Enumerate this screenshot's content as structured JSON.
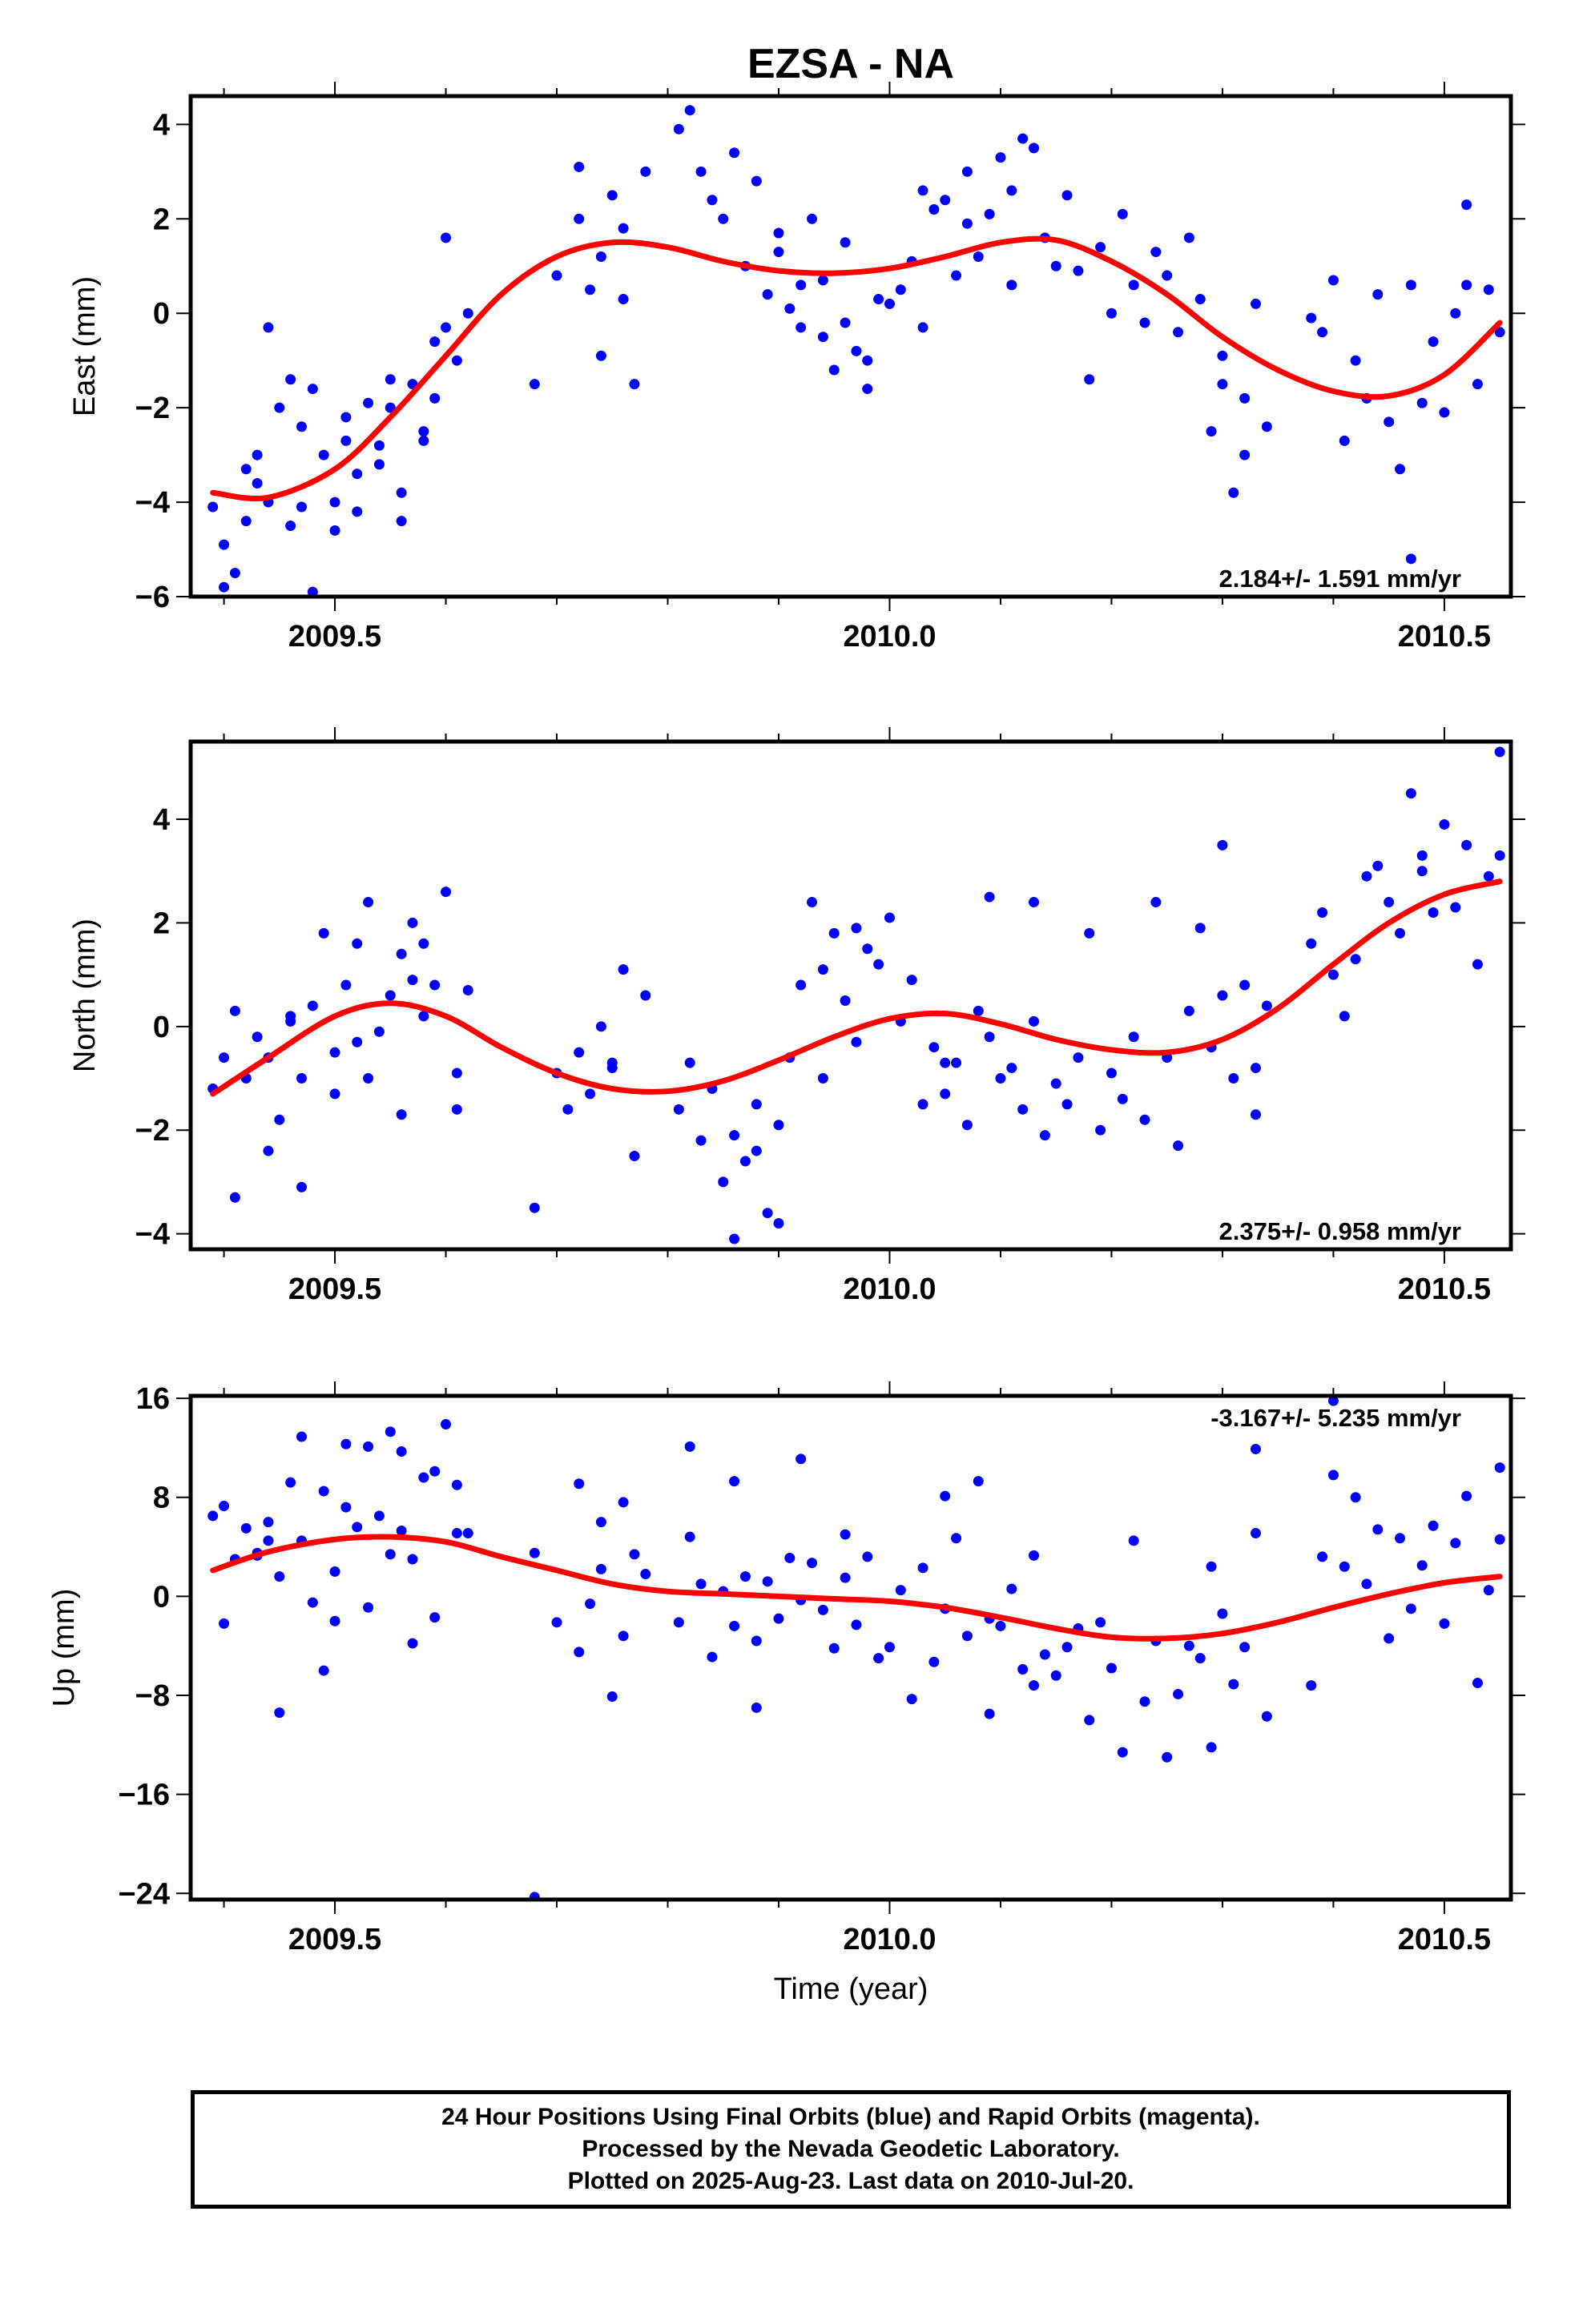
{
  "title": "EZSA - NA",
  "footer": {
    "line1": "24 Hour Positions Using Final Orbits (blue) and Rapid Orbits (magenta).",
    "line2": "Processed by the Nevada Geodetic Laboratory.",
    "line3": "Plotted on 2025-Aug-23. Last data on 2010-Jul-20."
  },
  "colors": {
    "points": "#0000ff",
    "fit": "#ff0000",
    "axes": "#000000"
  },
  "chart_data": [
    {
      "type": "scatter",
      "ylabel": "East (mm)",
      "ylim": [
        -6,
        4.6
      ],
      "xlim": [
        2009.37,
        2010.56
      ],
      "xticks": [
        2009.5,
        2010.0,
        2010.5
      ],
      "xtick_labels": [
        "2009.5",
        "2010.0",
        "2010.5"
      ],
      "yticks": [
        -6,
        -4,
        -2,
        0,
        2,
        4
      ],
      "ytick_labels": [
        "−6",
        "−4",
        "−2",
        "0",
        "2",
        "4"
      ],
      "annotation": "2.184+/- 1.591 mm/yr",
      "annotation_position": "bottom-right",
      "fit": {
        "x": [
          2009.39,
          2009.44,
          2009.5,
          2009.55,
          2009.6,
          2009.65,
          2009.7,
          2009.75,
          2009.8,
          2009.85,
          2009.9,
          2009.95,
          2010.0,
          2010.05,
          2010.1,
          2010.15,
          2010.2,
          2010.25,
          2010.3,
          2010.35,
          2010.4,
          2010.45,
          2010.5,
          2010.55
        ],
        "y": [
          -3.8,
          -3.9,
          -3.3,
          -2.2,
          -0.9,
          0.4,
          1.2,
          1.5,
          1.4,
          1.1,
          0.9,
          0.85,
          0.95,
          1.2,
          1.5,
          1.55,
          1.1,
          0.4,
          -0.5,
          -1.2,
          -1.65,
          -1.75,
          -1.3,
          -0.2
        ]
      },
      "points": {
        "x": [
          2009.39,
          2009.4,
          2009.41,
          2009.42,
          2009.43,
          2009.44,
          2009.45,
          2009.46,
          2009.47,
          2009.48,
          2009.49,
          2009.5,
          2009.51,
          2009.52,
          2009.53,
          2009.54,
          2009.55,
          2009.56,
          2009.57,
          2009.58,
          2009.59,
          2009.6,
          2009.61,
          2009.62,
          2009.4,
          2009.42,
          2009.44,
          2009.46,
          2009.48,
          2009.5,
          2009.52,
          2009.54,
          2009.56,
          2009.58,
          2009.6,
          2009.43,
          2009.47,
          2009.51,
          2009.55,
          2009.59,
          2009.68,
          2009.7,
          2009.72,
          2009.73,
          2009.74,
          2009.75,
          2009.76,
          2009.77,
          2009.78,
          2009.72,
          2009.74,
          2009.76,
          2009.81,
          2009.82,
          2009.83,
          2009.84,
          2009.85,
          2009.86,
          2009.87,
          2009.88,
          2009.89,
          2009.9,
          2009.91,
          2009.92,
          2009.93,
          2009.94,
          2009.95,
          2009.96,
          2009.97,
          2009.98,
          2009.99,
          2009.9,
          2009.92,
          2009.94,
          2009.96,
          2009.98,
          2010.0,
          2010.01,
          2010.02,
          2010.03,
          2010.04,
          2010.05,
          2010.06,
          2010.07,
          2010.08,
          2010.09,
          2010.1,
          2010.11,
          2010.12,
          2010.13,
          2010.14,
          2010.15,
          2010.03,
          2010.07,
          2010.11,
          2010.16,
          2010.17,
          2010.18,
          2010.19,
          2010.2,
          2010.21,
          2010.22,
          2010.23,
          2010.24,
          2010.25,
          2010.26,
          2010.27,
          2010.28,
          2010.29,
          2010.3,
          2010.31,
          2010.32,
          2010.33,
          2010.34,
          2010.3,
          2010.32,
          2010.38,
          2010.39,
          2010.4,
          2010.41,
          2010.42,
          2010.43,
          2010.44,
          2010.45,
          2010.46,
          2010.47,
          2010.48,
          2010.49,
          2010.5,
          2010.51,
          2010.52,
          2010.53,
          2010.54,
          2010.55,
          2010.47,
          2010.52
        ],
        "y": [
          -4.1,
          -4.9,
          -5.5,
          -3.3,
          -3.6,
          -4.0,
          -2.0,
          -4.5,
          -2.4,
          -1.6,
          -3.0,
          -4.6,
          -2.7,
          -3.4,
          -1.9,
          -3.2,
          -2.0,
          -3.8,
          -1.5,
          -2.5,
          -1.8,
          -0.3,
          -1.0,
          0.0,
          -5.8,
          -4.4,
          -0.3,
          -1.4,
          -5.9,
          -4.0,
          -4.2,
          -2.8,
          -4.4,
          -2.7,
          1.6,
          -3.0,
          -4.1,
          -2.2,
          -1.4,
          -0.6,
          -1.5,
          0.8,
          2.0,
          0.5,
          1.2,
          2.5,
          0.3,
          -1.5,
          3.0,
          3.1,
          -0.9,
          1.8,
          3.9,
          4.3,
          3.0,
          2.4,
          2.0,
          3.4,
          1.0,
          2.8,
          0.4,
          1.7,
          0.1,
          0.6,
          2.0,
          -0.5,
          -1.2,
          1.5,
          -0.8,
          -1.0,
          0.3,
          1.3,
          -0.3,
          0.7,
          -0.2,
          -1.6,
          0.2,
          0.5,
          1.1,
          -0.3,
          2.2,
          2.4,
          0.8,
          3.0,
          1.2,
          2.1,
          3.3,
          2.6,
          3.7,
          3.5,
          1.6,
          1.0,
          2.6,
          1.9,
          0.6,
          2.5,
          0.9,
          -1.4,
          1.4,
          0.0,
          2.1,
          0.6,
          -0.2,
          1.3,
          0.8,
          -0.4,
          1.6,
          0.3,
          -2.5,
          -0.9,
          -3.8,
          -1.8,
          0.2,
          -2.4,
          -1.5,
          -3.0,
          -0.1,
          -0.4,
          0.7,
          -2.7,
          -1.0,
          -1.8,
          0.4,
          -2.3,
          -3.3,
          0.6,
          -1.9,
          -0.6,
          -2.1,
          0.0,
          0.6,
          -1.5,
          0.5,
          -0.4,
          -5.2,
          2.3
        ]
      }
    },
    {
      "type": "scatter",
      "ylabel": "North (mm)",
      "ylim": [
        -4.3,
        5.5
      ],
      "xlim": [
        2009.37,
        2010.56
      ],
      "xticks": [
        2009.5,
        2010.0,
        2010.5
      ],
      "xtick_labels": [
        "2009.5",
        "2010.0",
        "2010.5"
      ],
      "yticks": [
        -4,
        -2,
        0,
        2,
        4
      ],
      "ytick_labels": [
        "−4",
        "−2",
        "0",
        "2",
        "4"
      ],
      "annotation": "2.375+/- 0.958 mm/yr",
      "annotation_position": "bottom-right",
      "fit": {
        "x": [
          2009.39,
          2009.44,
          2009.5,
          2009.55,
          2009.6,
          2009.65,
          2009.7,
          2009.75,
          2009.8,
          2009.85,
          2009.9,
          2009.95,
          2010.0,
          2010.05,
          2010.1,
          2010.15,
          2010.2,
          2010.25,
          2010.3,
          2010.35,
          2010.4,
          2010.45,
          2010.5,
          2010.55
        ],
        "y": [
          -1.3,
          -0.6,
          0.2,
          0.45,
          0.2,
          -0.4,
          -0.9,
          -1.2,
          -1.25,
          -1.05,
          -0.65,
          -0.2,
          0.15,
          0.25,
          0.05,
          -0.25,
          -0.45,
          -0.5,
          -0.25,
          0.35,
          1.2,
          2.0,
          2.55,
          2.8
        ]
      },
      "points": {
        "x": [
          2009.39,
          2009.4,
          2009.41,
          2009.42,
          2009.43,
          2009.44,
          2009.45,
          2009.46,
          2009.47,
          2009.48,
          2009.49,
          2009.5,
          2009.51,
          2009.52,
          2009.53,
          2009.54,
          2009.55,
          2009.56,
          2009.57,
          2009.58,
          2009.59,
          2009.6,
          2009.61,
          2009.62,
          2009.41,
          2009.44,
          2009.47,
          2009.5,
          2009.53,
          2009.56,
          2009.58,
          2009.61,
          2009.46,
          2009.52,
          2009.57,
          2009.68,
          2009.7,
          2009.72,
          2009.73,
          2009.74,
          2009.75,
          2009.76,
          2009.77,
          2009.78,
          2009.71,
          2009.75,
          2009.81,
          2009.82,
          2009.83,
          2009.84,
          2009.85,
          2009.86,
          2009.87,
          2009.88,
          2009.89,
          2009.9,
          2009.91,
          2009.92,
          2009.93,
          2009.94,
          2009.95,
          2009.96,
          2009.97,
          2009.98,
          2009.99,
          2009.86,
          2009.88,
          2009.9,
          2009.94,
          2009.97,
          2010.0,
          2010.01,
          2010.02,
          2010.03,
          2010.04,
          2010.05,
          2010.06,
          2010.07,
          2010.08,
          2010.09,
          2010.1,
          2010.11,
          2010.12,
          2010.13,
          2010.14,
          2010.15,
          2010.05,
          2010.09,
          2010.13,
          2010.16,
          2010.17,
          2010.18,
          2010.19,
          2010.2,
          2010.21,
          2010.22,
          2010.23,
          2010.24,
          2010.25,
          2010.26,
          2010.27,
          2010.28,
          2010.29,
          2010.3,
          2010.31,
          2010.32,
          2010.33,
          2010.34,
          2010.3,
          2010.33,
          2010.38,
          2010.39,
          2010.4,
          2010.41,
          2010.42,
          2010.43,
          2010.44,
          2010.45,
          2010.46,
          2010.47,
          2010.48,
          2010.49,
          2010.5,
          2010.51,
          2010.52,
          2010.53,
          2010.54,
          2010.55,
          2010.48,
          2010.55
        ],
        "y": [
          -1.2,
          -0.6,
          0.3,
          -1.0,
          -0.2,
          -0.6,
          -1.8,
          0.1,
          -1.0,
          0.4,
          1.8,
          -0.5,
          0.8,
          1.6,
          2.4,
          -0.1,
          0.6,
          -1.7,
          2.0,
          0.2,
          0.8,
          2.6,
          -0.9,
          0.7,
          -3.3,
          -2.4,
          -3.1,
          -1.3,
          -1.0,
          1.4,
          1.6,
          -1.6,
          0.2,
          -0.3,
          0.9,
          -3.5,
          -0.9,
          -0.5,
          -1.3,
          0.0,
          -0.7,
          1.1,
          -2.5,
          0.6,
          -1.6,
          -0.8,
          -1.6,
          -0.7,
          -2.2,
          -1.2,
          -3.0,
          -2.1,
          -2.6,
          -1.5,
          -3.6,
          -1.9,
          -0.6,
          0.8,
          2.4,
          1.1,
          1.8,
          0.5,
          -0.3,
          1.5,
          1.2,
          -4.1,
          -2.4,
          -3.8,
          -1.0,
          1.9,
          2.1,
          0.1,
          0.9,
          -1.5,
          -0.4,
          -1.3,
          -0.7,
          -1.9,
          0.3,
          -0.2,
          -1.0,
          -0.8,
          -1.6,
          0.1,
          -2.1,
          -1.1,
          -0.7,
          2.5,
          2.4,
          -1.5,
          -0.6,
          1.8,
          -2.0,
          -0.9,
          -1.4,
          -0.2,
          -1.8,
          2.4,
          -0.6,
          -2.3,
          0.3,
          1.9,
          -0.4,
          0.6,
          -1.0,
          0.8,
          -1.7,
          0.4,
          3.5,
          -0.8,
          1.6,
          2.2,
          1.0,
          0.2,
          1.3,
          2.9,
          3.1,
          2.4,
          1.8,
          4.5,
          3.0,
          2.2,
          3.9,
          2.3,
          3.5,
          1.2,
          2.9,
          3.3,
          3.3,
          5.3
        ]
      }
    },
    {
      "type": "scatter",
      "ylabel": "Up (mm)",
      "xlabel": "Time (year)",
      "ylim": [
        -24.5,
        16.2
      ],
      "xlim": [
        2009.37,
        2010.56
      ],
      "xticks": [
        2009.5,
        2010.0,
        2010.5
      ],
      "xtick_labels": [
        "2009.5",
        "2010.0",
        "2010.5"
      ],
      "yticks": [
        -24,
        -16,
        -8,
        0,
        8,
        16
      ],
      "ytick_labels": [
        "−24",
        "−16",
        "−8",
        "0",
        "8",
        "16"
      ],
      "annotation": "-3.167+/- 5.235 mm/yr",
      "annotation_position": "top-right",
      "fit": {
        "x": [
          2009.39,
          2009.44,
          2009.5,
          2009.55,
          2009.6,
          2009.65,
          2009.7,
          2009.75,
          2009.8,
          2009.85,
          2009.9,
          2009.95,
          2010.0,
          2010.05,
          2010.1,
          2010.15,
          2010.2,
          2010.25,
          2010.3,
          2010.35,
          2010.4,
          2010.45,
          2010.5,
          2010.55
        ],
        "y": [
          2.1,
          3.6,
          4.6,
          4.8,
          4.4,
          3.2,
          2.1,
          1.0,
          0.4,
          0.2,
          0.0,
          -0.2,
          -0.4,
          -0.9,
          -1.7,
          -2.6,
          -3.3,
          -3.4,
          -3.0,
          -2.1,
          -0.9,
          0.2,
          1.1,
          1.6
        ]
      },
      "points": {
        "x": [
          2009.39,
          2009.4,
          2009.41,
          2009.42,
          2009.43,
          2009.44,
          2009.45,
          2009.46,
          2009.47,
          2009.48,
          2009.49,
          2009.5,
          2009.51,
          2009.52,
          2009.53,
          2009.54,
          2009.55,
          2009.56,
          2009.57,
          2009.58,
          2009.59,
          2009.6,
          2009.61,
          2009.62,
          2009.4,
          2009.43,
          2009.45,
          2009.47,
          2009.49,
          2009.51,
          2009.53,
          2009.55,
          2009.57,
          2009.59,
          2009.61,
          2009.44,
          2009.5,
          2009.56,
          2009.68,
          2009.7,
          2009.72,
          2009.73,
          2009.74,
          2009.75,
          2009.76,
          2009.77,
          2009.78,
          2009.72,
          2009.74,
          2009.76,
          2009.81,
          2009.82,
          2009.83,
          2009.84,
          2009.85,
          2009.86,
          2009.87,
          2009.88,
          2009.89,
          2009.9,
          2009.91,
          2009.92,
          2009.93,
          2009.94,
          2009.95,
          2009.96,
          2009.97,
          2009.98,
          2009.99,
          2009.82,
          2009.86,
          2009.88,
          2009.92,
          2009.96,
          2010.0,
          2010.01,
          2010.02,
          2010.03,
          2010.04,
          2010.05,
          2010.06,
          2010.07,
          2010.08,
          2010.09,
          2010.1,
          2010.11,
          2010.12,
          2010.13,
          2010.14,
          2010.15,
          2010.05,
          2010.09,
          2010.13,
          2010.16,
          2010.17,
          2010.18,
          2010.19,
          2010.2,
          2010.21,
          2010.22,
          2010.23,
          2010.24,
          2010.25,
          2010.26,
          2010.27,
          2010.28,
          2010.29,
          2010.3,
          2010.31,
          2010.32,
          2010.33,
          2010.34,
          2010.29,
          2010.33,
          2010.38,
          2010.39,
          2010.4,
          2010.41,
          2010.42,
          2010.43,
          2010.44,
          2010.45,
          2010.46,
          2010.47,
          2010.48,
          2010.49,
          2010.5,
          2010.51,
          2010.52,
          2010.53,
          2010.54,
          2010.55,
          2010.4,
          2010.55,
          2009.68
        ],
        "y": [
          6.5,
          -2.2,
          3.0,
          5.5,
          3.5,
          6.0,
          1.6,
          9.2,
          4.5,
          -0.5,
          8.5,
          2.0,
          12.3,
          5.6,
          -0.9,
          6.5,
          3.4,
          5.3,
          3.0,
          9.6,
          -1.7,
          13.9,
          9.0,
          5.1,
          7.3,
          3.3,
          -9.4,
          12.9,
          -6.0,
          7.2,
          12.1,
          13.3,
          -3.8,
          10.1,
          5.1,
          4.5,
          -2.0,
          11.7,
          3.5,
          -2.1,
          9.1,
          -0.6,
          2.2,
          -8.1,
          7.6,
          3.4,
          1.8,
          -4.5,
          6.0,
          -3.2,
          -2.1,
          4.8,
          1.0,
          -4.9,
          0.4,
          -2.4,
          1.6,
          -3.6,
          1.2,
          -1.8,
          3.1,
          -0.3,
          2.7,
          -1.1,
          -4.2,
          5.0,
          -2.3,
          3.2,
          -5.0,
          12.1,
          9.3,
          -9.0,
          11.1,
          1.5,
          -4.1,
          0.5,
          -8.3,
          2.3,
          -5.3,
          -1.0,
          4.7,
          -3.2,
          9.3,
          -1.8,
          -2.4,
          0.6,
          -5.9,
          3.3,
          -4.7,
          -6.4,
          8.1,
          -9.5,
          -7.2,
          -4.1,
          -2.6,
          -10.0,
          -2.1,
          -5.8,
          -12.6,
          4.5,
          -8.5,
          -3.6,
          -13.0,
          -7.9,
          -4.0,
          -5.0,
          -12.2,
          -1.4,
          -7.1,
          -4.1,
          5.1,
          -9.7,
          2.4,
          11.9,
          -7.2,
          3.2,
          9.8,
          2.4,
          8.0,
          1.0,
          5.4,
          -3.4,
          4.7,
          -1.0,
          2.5,
          5.7,
          -2.2,
          4.3,
          8.1,
          -7.0,
          0.5,
          10.4,
          15.8,
          4.6,
          -24.3
        ]
      }
    }
  ]
}
